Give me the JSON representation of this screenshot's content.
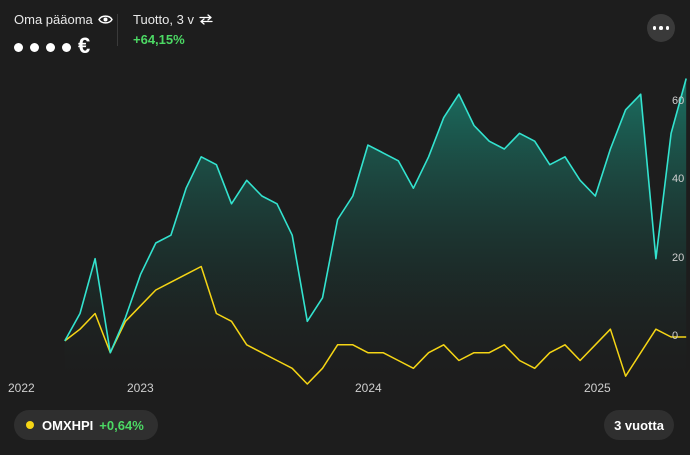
{
  "header": {
    "capital_label": "Oma pääoma",
    "capital_currency": "€",
    "return_label": "Tuotto, 3 v",
    "return_value": "+64,15%",
    "return_color": "#4cd964"
  },
  "icons": {
    "visibility": "eye-icon",
    "swap": "swap-arrows-icon",
    "more": "more-horizontal-icon"
  },
  "benchmark": {
    "name": "OMXHPI",
    "change": "+0,64%",
    "dot_color": "#f5d515",
    "change_color": "#4cd964"
  },
  "period_button": "3 vuotta",
  "chart_data": {
    "type": "line",
    "x_labels": [
      "2022",
      "2023",
      "2024",
      "2025"
    ],
    "y_ticks": [
      "0",
      "20",
      "40",
      "60"
    ],
    "ylabel": "",
    "x": [
      2022.3,
      2022.38,
      2022.46,
      2022.54,
      2022.62,
      2022.7,
      2022.78,
      2022.86,
      2022.94,
      2023.02,
      2023.1,
      2023.18,
      2023.26,
      2023.34,
      2023.42,
      2023.5,
      2023.58,
      2023.66,
      2023.74,
      2023.82,
      2023.9,
      2023.98,
      2024.06,
      2024.14,
      2024.22,
      2024.3,
      2024.38,
      2024.46,
      2024.54,
      2024.62,
      2024.7,
      2024.78,
      2024.86,
      2024.94,
      2025.02,
      2025.1,
      2025.18,
      2025.26,
      2025.34,
      2025.42,
      2025.5,
      2025.58
    ],
    "series": [
      {
        "name": "",
        "color": "#33e3cf",
        "values": [
          -1,
          6,
          20,
          -4,
          5,
          16,
          24,
          26,
          38,
          46,
          44,
          34,
          40,
          36,
          34,
          26,
          4,
          10,
          30,
          36,
          49,
          47,
          45,
          38,
          46,
          56,
          62,
          54,
          50,
          48,
          52,
          50,
          44,
          46,
          40,
          36,
          48,
          58,
          62,
          20,
          52,
          66
        ]
      },
      {
        "name": "OMXHPI",
        "color": "#f5d515",
        "values": [
          -1,
          2,
          6,
          -4,
          4,
          8,
          12,
          14,
          16,
          18,
          6,
          4,
          -2,
          -4,
          -6,
          -8,
          -12,
          -8,
          -2,
          -2,
          -4,
          -4,
          -6,
          -8,
          -4,
          -2,
          -6,
          -4,
          -4,
          -2,
          -6,
          -8,
          -4,
          -2,
          -6,
          -2,
          2,
          -10,
          -4,
          2,
          0,
          0
        ]
      }
    ]
  }
}
